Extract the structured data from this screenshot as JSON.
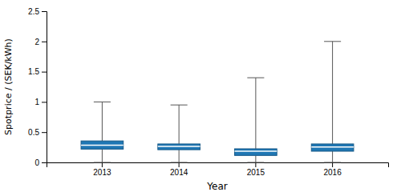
{
  "chart_data": {
    "type": "box",
    "xlabel": "Year",
    "ylabel": "Spotprice / (SEK/kWh)",
    "categories": [
      "2013",
      "2014",
      "2015",
      "2016"
    ],
    "values": [
      {
        "whislo": 0.0,
        "q1": 0.22,
        "med": 0.285,
        "q3": 0.355,
        "whishi": 1.0
      },
      {
        "whislo": 0.0,
        "q1": 0.21,
        "med": 0.265,
        "q3": 0.305,
        "whishi": 0.95
      },
      {
        "whislo": 0.0,
        "q1": 0.115,
        "med": 0.185,
        "q3": 0.225,
        "whishi": 1.4
      },
      {
        "whislo": 0.0,
        "q1": 0.185,
        "med": 0.255,
        "q3": 0.305,
        "whishi": 2.0
      }
    ],
    "ylim": [
      0,
      2.5
    ],
    "yticks": [
      0,
      0.5,
      1,
      1.5,
      2,
      2.5
    ],
    "grid": false
  }
}
